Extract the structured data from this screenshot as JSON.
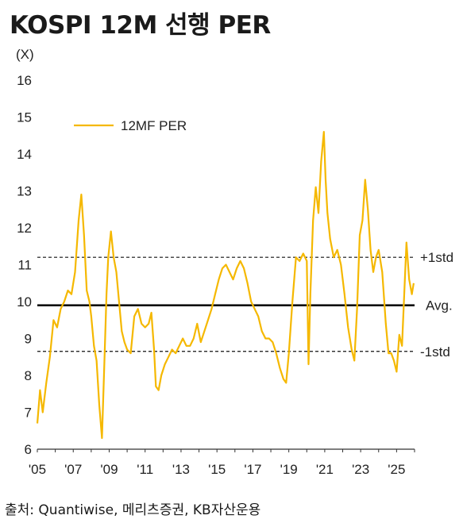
{
  "title": "KOSPI 12M 선행 PER",
  "source": "출처: Quantiwise, 메리츠증권, KB자산운용",
  "chart_data": {
    "type": "line",
    "unit_label": "(X)",
    "ylim": [
      6,
      16
    ],
    "y_ticks": [
      6,
      7,
      8,
      9,
      10,
      11,
      12,
      13,
      14,
      15,
      16
    ],
    "xlim": [
      2005.0,
      2026.0
    ],
    "x_ticks": [
      {
        "value": 2005,
        "label": "'05"
      },
      {
        "value": 2007,
        "label": "'07"
      },
      {
        "value": 2009,
        "label": "'09"
      },
      {
        "value": 2011,
        "label": "'11"
      },
      {
        "value": 2013,
        "label": "'13"
      },
      {
        "value": 2015,
        "label": "'15"
      },
      {
        "value": 2017,
        "label": "'17"
      },
      {
        "value": 2019,
        "label": "'19"
      },
      {
        "value": 2021,
        "label": "'21"
      },
      {
        "value": 2023,
        "label": "'23"
      },
      {
        "value": 2025,
        "label": "'25"
      }
    ],
    "legend": {
      "position": "top-left",
      "label": "12MF PER"
    },
    "series": [
      {
        "name": "12MF PER",
        "color": "#f5b800",
        "x": [
          2005.0,
          2005.15,
          2005.3,
          2005.5,
          2005.7,
          2005.9,
          2006.1,
          2006.3,
          2006.5,
          2006.7,
          2006.9,
          2007.1,
          2007.3,
          2007.45,
          2007.6,
          2007.75,
          2007.9,
          2008.0,
          2008.15,
          2008.3,
          2008.45,
          2008.6,
          2008.75,
          2008.85,
          2008.95,
          2009.1,
          2009.25,
          2009.4,
          2009.55,
          2009.7,
          2009.85,
          2010.0,
          2010.2,
          2010.4,
          2010.6,
          2010.8,
          2011.0,
          2011.2,
          2011.35,
          2011.5,
          2011.6,
          2011.75,
          2011.9,
          2012.1,
          2012.3,
          2012.5,
          2012.7,
          2012.9,
          2013.1,
          2013.3,
          2013.5,
          2013.7,
          2013.9,
          2014.1,
          2014.3,
          2014.5,
          2014.7,
          2014.9,
          2015.1,
          2015.3,
          2015.5,
          2015.7,
          2015.9,
          2016.1,
          2016.3,
          2016.5,
          2016.7,
          2016.9,
          2017.1,
          2017.3,
          2017.5,
          2017.7,
          2017.9,
          2018.1,
          2018.3,
          2018.5,
          2018.7,
          2018.85,
          2019.0,
          2019.2,
          2019.4,
          2019.6,
          2019.8,
          2020.0,
          2020.1,
          2020.2,
          2020.35,
          2020.5,
          2020.65,
          2020.8,
          2020.95,
          2021.05,
          2021.15,
          2021.3,
          2021.5,
          2021.7,
          2021.9,
          2022.1,
          2022.3,
          2022.5,
          2022.65,
          2022.8,
          2022.95,
          2023.1,
          2023.25,
          2023.4,
          2023.55,
          2023.7,
          2023.85,
          2024.0,
          2024.2,
          2024.4,
          2024.55,
          2024.7,
          2024.85,
          2025.0,
          2025.15,
          2025.3,
          2025.45,
          2025.55,
          2025.7,
          2025.85,
          2025.95
        ],
        "y": [
          6.7,
          7.6,
          7.0,
          7.8,
          8.5,
          9.5,
          9.3,
          9.8,
          10.0,
          10.3,
          10.2,
          10.8,
          12.2,
          12.9,
          11.8,
          10.3,
          10.0,
          9.6,
          8.8,
          8.4,
          7.2,
          6.3,
          8.6,
          10.2,
          11.2,
          11.9,
          11.2,
          10.8,
          10.0,
          9.2,
          8.9,
          8.7,
          8.6,
          9.6,
          9.8,
          9.4,
          9.3,
          9.4,
          9.7,
          8.7,
          7.7,
          7.6,
          8.0,
          8.3,
          8.5,
          8.7,
          8.6,
          8.8,
          9.0,
          8.8,
          8.8,
          9.0,
          9.4,
          8.9,
          9.2,
          9.5,
          9.8,
          10.2,
          10.6,
          10.9,
          11.0,
          10.8,
          10.6,
          10.9,
          11.1,
          10.9,
          10.5,
          10.0,
          9.8,
          9.6,
          9.2,
          9.0,
          9.0,
          8.9,
          8.6,
          8.2,
          7.9,
          7.8,
          8.6,
          10.0,
          11.2,
          11.1,
          11.3,
          11.1,
          8.3,
          10.2,
          12.2,
          13.1,
          12.4,
          13.8,
          14.6,
          13.3,
          12.4,
          11.7,
          11.2,
          11.4,
          11.0,
          10.2,
          9.3,
          8.7,
          8.4,
          9.8,
          11.8,
          12.2,
          13.3,
          12.5,
          11.4,
          10.8,
          11.2,
          11.4,
          10.8,
          9.4,
          8.6,
          8.6,
          8.4,
          8.1,
          9.1,
          8.8,
          10.5,
          11.6,
          10.6,
          10.2,
          10.5
        ]
      }
    ],
    "reference_lines": [
      {
        "label": "+1std",
        "value": 11.2,
        "style": "dashed"
      },
      {
        "label": "Avg.",
        "value": 9.9,
        "style": "solid"
      },
      {
        "label": "-1std",
        "value": 8.65,
        "style": "dashed"
      }
    ]
  }
}
